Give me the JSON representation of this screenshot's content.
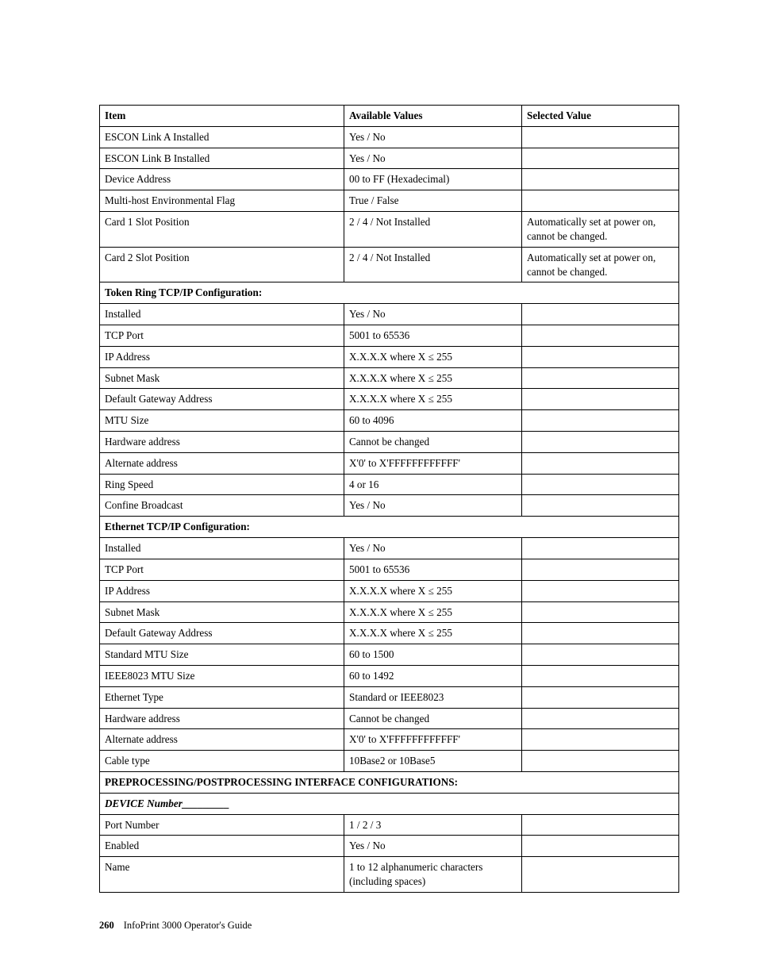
{
  "table": {
    "headers": [
      "Item",
      "Available Values",
      "Selected Value"
    ],
    "rows": [
      {
        "type": "data",
        "item": "ESCON Link A Installed",
        "avail": "Yes / No",
        "sel": ""
      },
      {
        "type": "data",
        "item": "ESCON Link B Installed",
        "avail": "Yes / No",
        "sel": ""
      },
      {
        "type": "data",
        "item": "Device Address",
        "avail": "00 to FF (Hexadecimal)",
        "sel": ""
      },
      {
        "type": "data",
        "item": "Multi-host Environmental Flag",
        "avail": "True / False",
        "sel": ""
      },
      {
        "type": "data",
        "item": "Card 1 Slot Position",
        "avail": "2 / 4 / Not Installed",
        "sel": "Automatically set at power on, cannot be changed."
      },
      {
        "type": "data",
        "item": "Card 2 Slot Position",
        "avail": "2 / 4 / Not Installed",
        "sel": "Automatically set at power on, cannot be changed."
      },
      {
        "type": "section",
        "label": "Token Ring TCP/IP Configuration:"
      },
      {
        "type": "data",
        "item": "Installed",
        "avail": "Yes / No",
        "sel": ""
      },
      {
        "type": "data",
        "item": "TCP Port",
        "avail": "5001 to 65536",
        "sel": ""
      },
      {
        "type": "data",
        "item": "IP Address",
        "avail": "X.X.X.X where X ≤ 255",
        "sel": ""
      },
      {
        "type": "data",
        "item": "Subnet Mask",
        "avail": "X.X.X.X where X ≤ 255",
        "sel": ""
      },
      {
        "type": "data",
        "item": "Default Gateway Address",
        "avail": "X.X.X.X where X ≤ 255",
        "sel": ""
      },
      {
        "type": "data",
        "item": "MTU Size",
        "avail": "60 to 4096",
        "sel": ""
      },
      {
        "type": "data",
        "item": "Hardware address",
        "avail": "Cannot be changed",
        "sel": ""
      },
      {
        "type": "data",
        "item": "Alternate address",
        "avail": "X'0' to X'FFFFFFFFFFFF'",
        "sel": ""
      },
      {
        "type": "data",
        "item": "Ring Speed",
        "avail": "4 or 16",
        "sel": ""
      },
      {
        "type": "data",
        "item": "Confine Broadcast",
        "avail": "Yes / No",
        "sel": ""
      },
      {
        "type": "section",
        "label": "Ethernet TCP/IP Configuration:"
      },
      {
        "type": "data",
        "item": "Installed",
        "avail": "Yes / No",
        "sel": ""
      },
      {
        "type": "data",
        "item": "TCP Port",
        "avail": "5001 to 65536",
        "sel": ""
      },
      {
        "type": "data",
        "item": "IP Address",
        "avail": "X.X.X.X where X ≤ 255",
        "sel": ""
      },
      {
        "type": "data",
        "item": "Subnet Mask",
        "avail": "X.X.X.X where X ≤ 255",
        "sel": ""
      },
      {
        "type": "data",
        "item": "Default Gateway Address",
        "avail": "X.X.X.X where X ≤ 255",
        "sel": ""
      },
      {
        "type": "data",
        "item": "Standard MTU Size",
        "avail": "60 to 1500",
        "sel": ""
      },
      {
        "type": "data",
        "item": "IEEE8023 MTU Size",
        "avail": "60 to 1492",
        "sel": ""
      },
      {
        "type": "data",
        "item": "Ethernet Type",
        "avail": "Standard or IEEE8023",
        "sel": ""
      },
      {
        "type": "data",
        "item": "Hardware address",
        "avail": "Cannot be changed",
        "sel": ""
      },
      {
        "type": "data",
        "item": "Alternate address",
        "avail": "X'0' to X'FFFFFFFFFFFF'",
        "sel": ""
      },
      {
        "type": "data",
        "item": "Cable type",
        "avail": "10Base2 or 10Base5",
        "sel": ""
      },
      {
        "type": "section",
        "label": "PREPROCESSING/POSTPROCESSING INTERFACE CONFIGURATIONS:"
      },
      {
        "type": "section-italic",
        "label": "DEVICE Number_________"
      },
      {
        "type": "data",
        "item": "Port Number",
        "avail": "1 / 2 / 3",
        "sel": ""
      },
      {
        "type": "data",
        "item": "Enabled",
        "avail": "Yes / No",
        "sel": ""
      },
      {
        "type": "data",
        "item": "Name",
        "avail": "1 to 12 alphanumeric characters (including spaces)",
        "sel": ""
      }
    ]
  },
  "footer": {
    "page_number": "260",
    "book_title": "InfoPrint 3000 Operator's Guide"
  }
}
